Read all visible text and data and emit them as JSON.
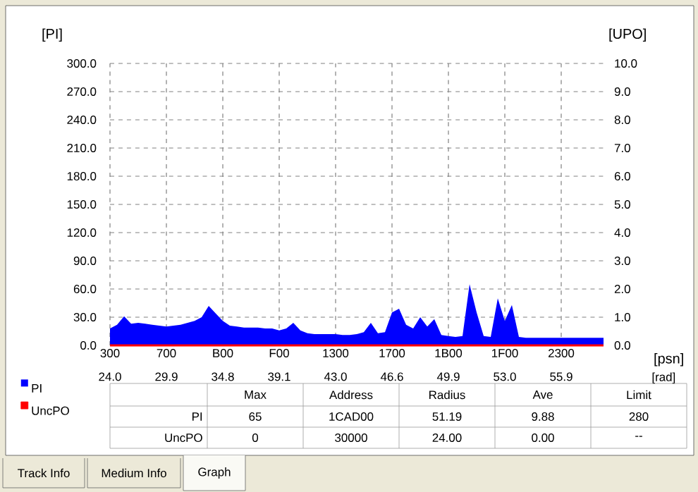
{
  "chart_data": {
    "type": "area",
    "xlabel": "[psn]",
    "ylabel": "[PI]",
    "y2label": "[UPO]",
    "categories": [
      "300",
      null,
      null,
      null,
      null,
      null,
      null,
      null,
      "700",
      null,
      null,
      null,
      null,
      null,
      null,
      null,
      "B00",
      null,
      null,
      null,
      null,
      null,
      null,
      null,
      "F00",
      null,
      null,
      null,
      null,
      null,
      null,
      null,
      "1300",
      null,
      null,
      null,
      null,
      null,
      null,
      null,
      "1700",
      null,
      null,
      null,
      null,
      null,
      null,
      null,
      "1B00",
      null,
      null,
      null,
      null,
      null,
      null,
      null,
      "1F00",
      null,
      null,
      null,
      null,
      null,
      null,
      null,
      "2300",
      null,
      null,
      null,
      null,
      null,
      null
    ],
    "ylim": [
      0,
      300
    ],
    "yticks": [
      {
        "value": 0,
        "label": "0.0"
      },
      {
        "value": 30,
        "label": "30.0"
      },
      {
        "value": 60,
        "label": "60.0"
      },
      {
        "value": 90,
        "label": "90.0"
      },
      {
        "value": 120,
        "label": "120.0"
      },
      {
        "value": 150,
        "label": "150.0"
      },
      {
        "value": 180,
        "label": "180.0"
      },
      {
        "value": 210,
        "label": "210.0"
      },
      {
        "value": 240,
        "label": "240.0"
      },
      {
        "value": 270,
        "label": "270.0"
      },
      {
        "value": 300,
        "label": "300.0"
      }
    ],
    "y2lim": [
      0,
      10
    ],
    "y2ticks": [
      {
        "value": 0,
        "label": "0.0"
      },
      {
        "value": 1,
        "label": "1.0"
      },
      {
        "value": 2,
        "label": "2.0"
      },
      {
        "value": 3,
        "label": "3.0"
      },
      {
        "value": 4,
        "label": "4.0"
      },
      {
        "value": 5,
        "label": "5.0"
      },
      {
        "value": 6,
        "label": "6.0"
      },
      {
        "value": 7,
        "label": "7.0"
      },
      {
        "value": 8,
        "label": "8.0"
      },
      {
        "value": 9,
        "label": "9.0"
      },
      {
        "value": 10,
        "label": "10.0"
      }
    ],
    "grid": true,
    "legend": "bottom left",
    "series": [
      {
        "name": "PI",
        "color": "#0000ff",
        "values": [
          18,
          22,
          31,
          23,
          24,
          23,
          22,
          21,
          20,
          21,
          22,
          24,
          26,
          30,
          42,
          34,
          26,
          21,
          20,
          19,
          19,
          19,
          18,
          18,
          16,
          18,
          24,
          16,
          13,
          12,
          12,
          12,
          12,
          11,
          11,
          12,
          14,
          24,
          13,
          14,
          35,
          39,
          22,
          18,
          30,
          20,
          28,
          11,
          10,
          9,
          10,
          65,
          35,
          10,
          9,
          50,
          26,
          43,
          9,
          8,
          8,
          8,
          8,
          8,
          8,
          8,
          8,
          8,
          8,
          8,
          8
        ]
      },
      {
        "name": "UncPO",
        "color": "#ff0000",
        "type": "line",
        "axis": "y2",
        "values": [
          0,
          0,
          0,
          0,
          0,
          0,
          0,
          0,
          0,
          0,
          0,
          0,
          0,
          0,
          0,
          0,
          0,
          0,
          0,
          0,
          0,
          0,
          0,
          0,
          0,
          0,
          0,
          0,
          0,
          0,
          0,
          0,
          0,
          0,
          0,
          0,
          0,
          0,
          0,
          0,
          0,
          0,
          0,
          0,
          0,
          0,
          0,
          0,
          0,
          0,
          0,
          0,
          0,
          0,
          0,
          0,
          0,
          0,
          0,
          0,
          0,
          0,
          0,
          0,
          0,
          0,
          0,
          0,
          0,
          0,
          0
        ]
      }
    ],
    "annotations": [
      "24.0",
      "29.9",
      "34.8",
      "39.1",
      "43.0",
      "46.6",
      "49.9",
      "53.0",
      "55.9",
      "[rad]",
      "Max",
      "Address",
      "Radius",
      "Ave",
      "Limit",
      "PI",
      "65",
      "1CAD00",
      "51.19",
      "9.88",
      "280",
      "UncPO",
      "0",
      "30000",
      "24.00",
      "0.00",
      "--",
      "Track Info",
      "Medium Info",
      "Graph"
    ]
  }
}
